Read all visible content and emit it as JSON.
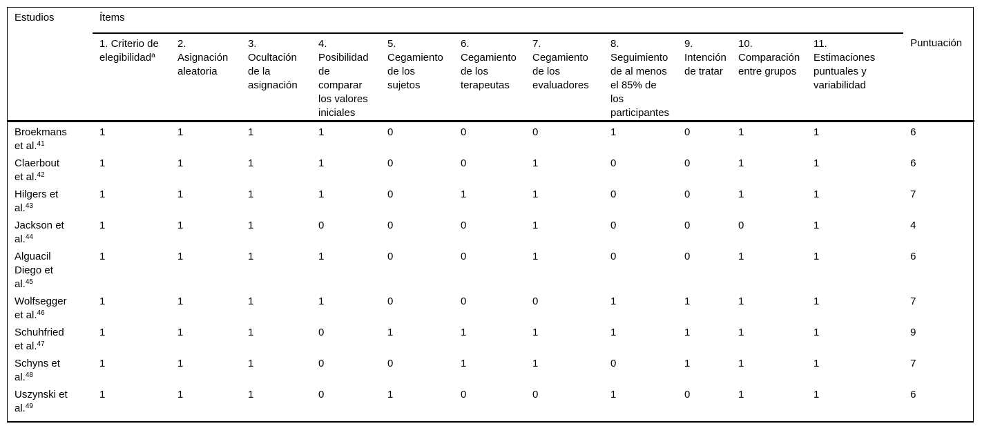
{
  "table": {
    "studies_header": "Estudios",
    "items_group_header": "Ítems",
    "score_header": "Puntuación",
    "item_headers": [
      {
        "label": "1. Criterio de elegibilidad",
        "sup": "a"
      },
      {
        "label": "2. Asignación aleatoria",
        "sup": ""
      },
      {
        "label": "3. Ocultación de la asignación",
        "sup": ""
      },
      {
        "label": "4. Posibilidad de comparar los valores iniciales",
        "sup": ""
      },
      {
        "label": "5. Cegamiento de los sujetos",
        "sup": ""
      },
      {
        "label": "6. Cegamiento de los terapeutas",
        "sup": ""
      },
      {
        "label": "7. Cegamiento de los evaluadores",
        "sup": ""
      },
      {
        "label": "8. Seguimiento de al menos el 85% de los participantes",
        "sup": ""
      },
      {
        "label": "9. Intención de tratar",
        "sup": ""
      },
      {
        "label": "10. Comparación entre grupos",
        "sup": ""
      },
      {
        "label": "11. Estimaciones puntuales y variabilidad",
        "sup": ""
      }
    ],
    "rows": [
      {
        "study": "Broekmans et al.",
        "ref": "41",
        "values": [
          1,
          1,
          1,
          1,
          0,
          0,
          0,
          1,
          0,
          1,
          1
        ],
        "score": 6
      },
      {
        "study": "Claerbout et al.",
        "ref": "42",
        "values": [
          1,
          1,
          1,
          1,
          0,
          0,
          1,
          0,
          0,
          1,
          1
        ],
        "score": 6
      },
      {
        "study": "Hilgers et al.",
        "ref": "43",
        "values": [
          1,
          1,
          1,
          1,
          0,
          1,
          1,
          0,
          0,
          1,
          1
        ],
        "score": 7
      },
      {
        "study": "Jackson et al.",
        "ref": "44",
        "values": [
          1,
          1,
          1,
          0,
          0,
          0,
          1,
          0,
          0,
          0,
          1
        ],
        "score": 4
      },
      {
        "study": "Alguacil Diego et al.",
        "ref": "45",
        "values": [
          1,
          1,
          1,
          1,
          0,
          0,
          1,
          0,
          0,
          1,
          1
        ],
        "score": 6
      },
      {
        "study": "Wolfsegger et al.",
        "ref": "46",
        "values": [
          1,
          1,
          1,
          1,
          0,
          0,
          0,
          1,
          1,
          1,
          1
        ],
        "score": 7
      },
      {
        "study": "Schuhfried et al.",
        "ref": "47",
        "values": [
          1,
          1,
          1,
          0,
          1,
          1,
          1,
          1,
          1,
          1,
          1
        ],
        "score": 9
      },
      {
        "study": "Schyns et al.",
        "ref": "48",
        "values": [
          1,
          1,
          1,
          0,
          0,
          1,
          1,
          0,
          1,
          1,
          1
        ],
        "score": 7
      },
      {
        "study": "Uszynski et al.",
        "ref": "49",
        "values": [
          1,
          1,
          1,
          0,
          1,
          0,
          0,
          1,
          0,
          1,
          1
        ],
        "score": 6
      }
    ],
    "text_color": "#000000",
    "rule_color": "#000000",
    "background_color": "#ffffff"
  }
}
